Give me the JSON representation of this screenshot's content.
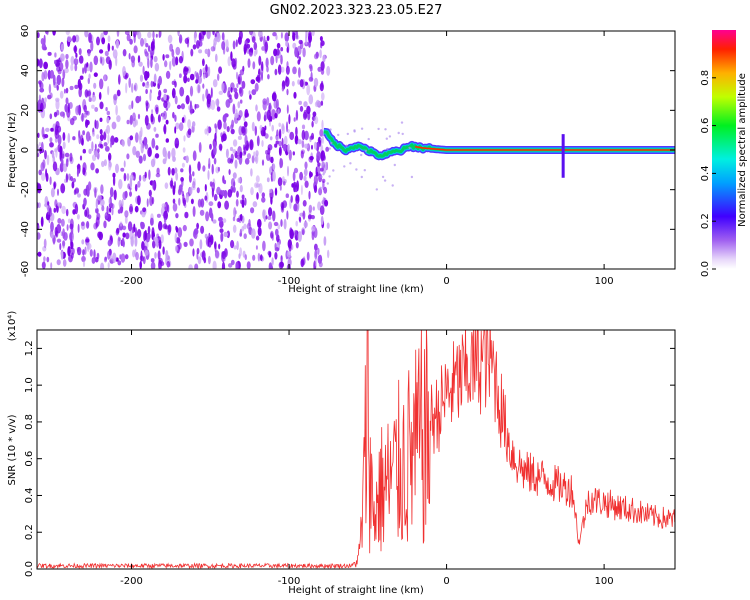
{
  "title": "GN02.2023.323.23.05.E27",
  "chart_data": [
    {
      "type": "heatmap",
      "xlabel": "Height of straight line (km)",
      "ylabel": "Frequency (Hz)",
      "xlim": [
        -260,
        145
      ],
      "ylim": [
        -60,
        60
      ],
      "x_ticks": [
        -200,
        -100,
        0,
        100
      ],
      "x_tick_labels": [
        "-200",
        "-100",
        "0",
        "100"
      ],
      "y_ticks": [
        -60,
        -40,
        -20,
        0,
        20,
        40,
        60
      ],
      "y_tick_labels": [
        "-60",
        "-40",
        "-20",
        "0",
        "20",
        "40",
        "60"
      ],
      "grid": false,
      "colorbar": {
        "label": "Normalized spectral amplitude",
        "range": [
          0,
          1
        ],
        "ticks": [
          0,
          0.2,
          0.4,
          0.6,
          0.8
        ],
        "tick_labels": [
          "0.0",
          "0.2",
          "0.4",
          "0.6",
          "0.8"
        ],
        "colormap": "rainbow (white-violet to red)"
      },
      "noise_region_x": [
        -260,
        -75
      ],
      "signal_trace": {
        "x": [
          -78,
          -72,
          -65,
          -58,
          -52,
          -46,
          -40,
          -34,
          -28,
          -22,
          -15,
          0,
          20,
          40,
          60,
          74,
          80,
          100,
          120,
          145
        ],
        "frequency": [
          10,
          4,
          0,
          2,
          1,
          -2,
          -3,
          -1,
          0,
          2,
          1,
          0,
          0,
          0,
          0,
          0,
          0,
          0,
          0,
          0
        ],
        "amplitude": [
          0.25,
          0.3,
          0.35,
          0.4,
          0.45,
          0.5,
          0.5,
          0.55,
          0.6,
          0.65,
          0.75,
          0.95,
          0.95,
          0.95,
          0.95,
          0.9,
          0.95,
          0.95,
          0.9,
          0.85
        ]
      },
      "colors": {
        "noise": "#7a00e6",
        "noise_light": "#c8a0f5",
        "trace_center": "#ff2a00",
        "trace_halo": "#00d060"
      }
    },
    {
      "type": "line",
      "xlabel": "Height of straight line (km)",
      "ylabel": "SNR (10 * v/v)",
      "y_multiplier": "(x10⁴)",
      "xlim": [
        -260,
        145
      ],
      "ylim": [
        0,
        1.3
      ],
      "x_ticks": [
        -200,
        -100,
        0,
        100
      ],
      "x_tick_labels": [
        "-200",
        "-100",
        "0",
        "100"
      ],
      "y_ticks": [
        0,
        0.2,
        0.4,
        0.6,
        0.8,
        1.0,
        1.2
      ],
      "y_tick_labels": [
        "0.0",
        "0.2",
        "0.4",
        "0.6",
        "0.8",
        "1.0",
        "1.2"
      ],
      "grid": false,
      "series": [
        {
          "color": "#f03030",
          "x": [
            -260,
            -150,
            -60,
            -56,
            -54,
            -52,
            -50,
            -48,
            -46,
            -42,
            -36,
            -30,
            -25,
            -20,
            -15,
            -10,
            -5,
            0,
            5,
            10,
            15,
            20,
            25,
            30,
            35,
            40,
            45,
            50,
            60,
            70,
            80,
            84,
            90,
            100,
            110,
            120,
            130,
            145
          ],
          "y": [
            0.02,
            0.02,
            0.02,
            0.06,
            0.25,
            0.6,
            1.3,
            0.5,
            0.35,
            0.5,
            0.55,
            0.65,
            0.7,
            0.75,
            0.85,
            0.85,
            0.9,
            1.0,
            1.05,
            1.1,
            1.15,
            1.18,
            1.22,
            1.15,
            0.9,
            0.7,
            0.6,
            0.55,
            0.52,
            0.48,
            0.45,
            0.15,
            0.4,
            0.38,
            0.35,
            0.33,
            0.3,
            0.28
          ]
        }
      ]
    }
  ]
}
